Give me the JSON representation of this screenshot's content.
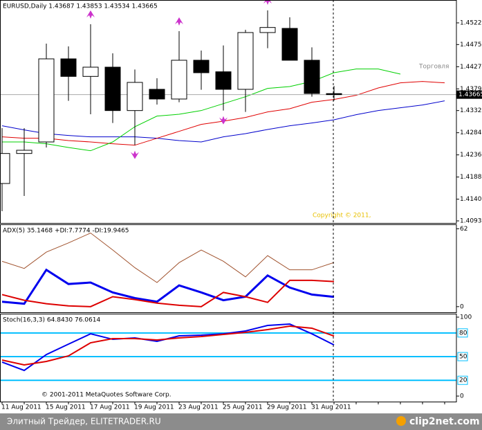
{
  "chart_data": [
    {
      "type": "candlestick",
      "title": "EURUSD,Daily  1.43687 1.43853 1.43534 1.43665",
      "categories": [
        "11 Aug 2011",
        null,
        "15 Aug 2011",
        null,
        "17 Aug 2011",
        null,
        "19 Aug 2011",
        null,
        "23 Aug 2011",
        null,
        "25 Aug 2011",
        null,
        "29 Aug 2011",
        null,
        "31 Aug 2011",
        null,
        null,
        null,
        null,
        null,
        null
      ],
      "open": [
        1.4174,
        1.4239,
        1.4264,
        1.4444,
        1.4406,
        1.4426,
        1.4332,
        1.4378,
        1.4357,
        1.4441,
        1.4416,
        1.4378,
        1.4501,
        1.451,
        1.4441,
        1.43687,
        null,
        null,
        null,
        null,
        null
      ],
      "high": [
        1.4294,
        1.4294,
        1.4477,
        1.4471,
        1.4519,
        1.4456,
        1.4421,
        1.4402,
        1.4504,
        1.4462,
        1.4473,
        1.4507,
        1.4549,
        1.4534,
        1.4469,
        1.43853,
        null,
        null,
        null,
        null,
        null
      ],
      "low": [
        1.4114,
        1.4147,
        1.4252,
        1.4353,
        1.4324,
        1.4305,
        1.4257,
        1.4345,
        1.435,
        1.4377,
        1.4332,
        1.4329,
        1.4467,
        1.4441,
        1.4362,
        1.43534,
        null,
        null,
        null,
        null,
        null
      ],
      "close": [
        1.4239,
        1.4246,
        1.4444,
        1.4406,
        1.4426,
        1.4332,
        1.4393,
        1.4357,
        1.4441,
        1.4414,
        1.4378,
        1.4501,
        1.4512,
        1.4441,
        1.4369,
        1.43665,
        null,
        null,
        null,
        null,
        null
      ],
      "series": [
        {
          "color": "#0000cc",
          "values": [
            1.4299,
            1.429,
            1.4282,
            1.4278,
            1.4275,
            1.4275,
            1.4275,
            1.4272,
            1.4267,
            1.4264,
            1.4275,
            1.4282,
            1.4291,
            1.4299,
            1.4305,
            1.4312,
            1.4323,
            1.4332,
            1.4338,
            1.4344,
            1.4353
          ]
        },
        {
          "color": "#e00000",
          "values": [
            1.4275,
            1.4272,
            1.4272,
            1.4267,
            1.4264,
            1.426,
            1.4257,
            1.4272,
            1.4287,
            1.4302,
            1.4309,
            1.4317,
            1.4329,
            1.4336,
            1.435,
            1.4356,
            1.4365,
            1.4381,
            1.4392,
            1.4395,
            1.4392
          ]
        },
        {
          "color": "#00d000",
          "values": [
            1.4264,
            1.4264,
            1.426,
            1.4252,
            1.4245,
            1.4264,
            1.4297,
            1.432,
            1.4324,
            1.4332,
            1.4347,
            1.4362,
            1.438,
            1.4384,
            1.4395,
            1.4414,
            1.4422,
            1.4422,
            1.4411,
            null,
            null
          ]
        }
      ],
      "fractals_up": [
        null,
        null,
        null,
        null,
        1.4519,
        null,
        null,
        null,
        1.4504,
        null,
        null,
        null,
        1.4549,
        null,
        null,
        null,
        null,
        null,
        null,
        null,
        null
      ],
      "fractals_down": [
        null,
        null,
        null,
        null,
        null,
        null,
        1.4257,
        null,
        null,
        null,
        1.4332,
        null,
        null,
        null,
        null,
        null,
        null,
        null,
        null,
        null,
        null
      ],
      "fractal_color": "#cc33cc",
      "current_price": 1.43665,
      "ylim": [
        1.40885,
        1.45715
      ],
      "yticks": [
        {
          "value": 1.4522,
          "label": "1.45220"
        },
        {
          "value": 1.4475,
          "label": "1.44750"
        },
        {
          "value": 1.4427,
          "label": "1.44270"
        },
        {
          "value": 1.4379,
          "label": "1.43790"
        },
        {
          "value": 1.4332,
          "label": "1.43320"
        },
        {
          "value": 1.4284,
          "label": "1.42840"
        },
        {
          "value": 1.4236,
          "label": "1.42360"
        },
        {
          "value": 1.4188,
          "label": "1.41880"
        },
        {
          "value": 1.414,
          "label": "1.41400"
        },
        {
          "value": 1.4093,
          "label": "1.40930"
        }
      ],
      "annotations": [
        "Торговля",
        "Copyright © 2011,"
      ]
    },
    {
      "type": "line",
      "title": "ADX(5) 35.1468 +DI:7.7774 -DI:19.9465",
      "series": [
        {
          "color": "#a0522d",
          "width": 1,
          "values": [
            36.1,
            30.4,
            43.4,
            50.7,
            58.6,
            45.1,
            31.0,
            19.2,
            35.0,
            45.1,
            36.1,
            23.7,
            40.6,
            29.3,
            29.3,
            35.1468
          ]
        },
        {
          "color": "#0000ee",
          "width": 3,
          "values": [
            3.9,
            2.3,
            29.3,
            18.0,
            19.2,
            11.3,
            6.8,
            3.9,
            16.9,
            11.3,
            5.1,
            7.9,
            24.8,
            15.2,
            9.6,
            7.7774
          ]
        },
        {
          "color": "#dd0000",
          "width": 2,
          "values": [
            9.6,
            5.1,
            2.3,
            0.6,
            0,
            7.9,
            5.6,
            2.8,
            1.1,
            0,
            11.3,
            7.9,
            3.4,
            20.9,
            20.9,
            19.9465
          ]
        }
      ],
      "ylim": [
        -4.5,
        65.5
      ],
      "yticks": [
        0,
        62
      ]
    },
    {
      "type": "line",
      "title": "Stoch(16,3,3) 64.8430 76.0614",
      "series": [
        {
          "color": "#0000ee",
          "width": 2,
          "values": [
            43.0,
            32.5,
            52.6,
            65.8,
            78.9,
            71.9,
            73.7,
            69.3,
            76.3,
            77.2,
            78.9,
            82.5,
            89.5,
            91.2,
            78.9,
            64.843
          ]
        },
        {
          "color": "#dd0000",
          "width": 2,
          "values": [
            45.6,
            39.5,
            43.9,
            50.9,
            67.5,
            72.8,
            72.8,
            71.1,
            73.7,
            75.4,
            78.1,
            80.7,
            84.2,
            88.6,
            86.0,
            76.0614
          ]
        }
      ],
      "levels": [
        80,
        50,
        20
      ],
      "level_color": "#00bfff",
      "ylim": [
        -7,
        104.4
      ],
      "yticks": [
        0,
        100
      ],
      "annotations": [
        "© 2001-2011 MetaQuotes Software Corp."
      ]
    }
  ],
  "footer": {
    "text": "Элитный Трейдер, ELITETRADER.RU",
    "logo": "clip2net.com"
  }
}
